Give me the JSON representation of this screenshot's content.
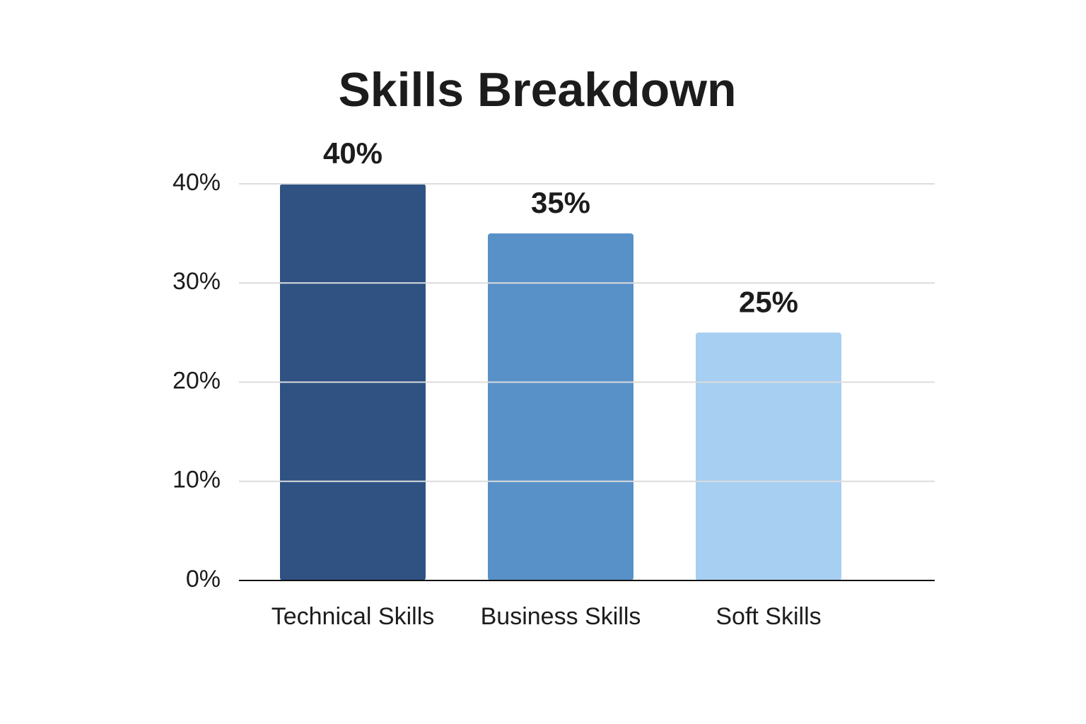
{
  "chart_data": {
    "type": "bar",
    "title": "Skills Breakdown",
    "categories": [
      "Technical Skills",
      "Business Skills",
      "Soft Skills"
    ],
    "values": [
      40,
      35,
      25
    ],
    "value_labels": [
      "40%",
      "35%",
      "25%"
    ],
    "colors": [
      "#2f5283",
      "#5891c8",
      "#a6cff2"
    ],
    "ylim": [
      0,
      40
    ],
    "yticks": [
      {
        "value": 0,
        "label": "0%"
      },
      {
        "value": 10,
        "label": "10%"
      },
      {
        "value": 20,
        "label": "20%"
      },
      {
        "value": 30,
        "label": "30%"
      },
      {
        "value": 40,
        "label": "40%"
      }
    ],
    "grid": true
  }
}
